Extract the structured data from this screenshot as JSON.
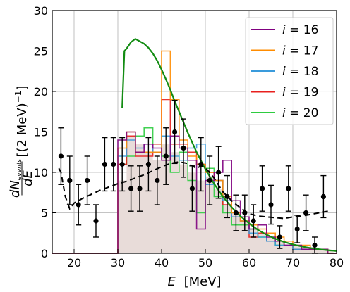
{
  "chart_data": {
    "type": "line",
    "xlabel_var": "E",
    "xlabel_unit": "[MeV]",
    "ylabel_num": "dN",
    "ylabel_num_sub": "events",
    "ylabel_den": "dE",
    "ylabel_unit": "[(2 MeV)",
    "ylabel_exp": "−1",
    "ylabel_close": "]",
    "xlim": [
      15,
      80
    ],
    "ylim": [
      0,
      30
    ],
    "xticks": [
      20,
      30,
      40,
      50,
      60,
      70,
      80
    ],
    "yticks": [
      0,
      5,
      10,
      15,
      20,
      25,
      30
    ],
    "grid": true,
    "legend_position": "top-right",
    "shaded_background_hist": {
      "color": "#e8dcd9",
      "edges": [
        30,
        32,
        34,
        36,
        38,
        40,
        42,
        44,
        46,
        48,
        50,
        52,
        54,
        56,
        58,
        60,
        62,
        64,
        66,
        68,
        70,
        72,
        74,
        76,
        78
      ],
      "values": [
        9,
        14.5,
        13.5,
        12.5,
        11.5,
        13.5,
        12.5,
        11,
        10,
        9,
        9.5,
        8,
        6,
        5,
        4,
        3,
        2.5,
        2,
        1.5,
        1,
        1,
        0.8,
        0.6,
        0.4
      ]
    },
    "histograms": [
      {
        "name_var": "i",
        "name_eq": " = ",
        "name_val": "16",
        "color": "#800080",
        "edges": [
          30,
          32,
          34,
          36,
          38,
          40,
          42,
          44,
          46,
          48,
          50,
          52,
          54,
          56,
          58,
          60,
          62,
          64,
          66,
          68,
          70,
          72,
          74,
          76,
          78,
          80
        ],
        "values": [
          14,
          15,
          12.5,
          13.5,
          13,
          11.5,
          14.5,
          13,
          11.5,
          3,
          9,
          10,
          11.5,
          6.5,
          4.5,
          3,
          3.5,
          2,
          1.5,
          1,
          1,
          0.5,
          0.5,
          0.5,
          0
        ]
      },
      {
        "name_var": "i",
        "name_eq": " = ",
        "name_val": "17",
        "color": "#ff8c00",
        "edges": [
          30,
          32,
          34,
          36,
          38,
          40,
          42,
          44,
          46,
          48,
          50,
          52,
          54,
          56,
          58,
          60,
          62,
          64,
          66,
          68,
          70,
          72,
          74,
          76,
          78,
          80
        ],
        "values": [
          13,
          15,
          12.5,
          12.5,
          12.5,
          25,
          19,
          14,
          12,
          11,
          10,
          9,
          7,
          5,
          4,
          3.5,
          3,
          2.5,
          2,
          1.5,
          1,
          1,
          0.5,
          0.5,
          0
        ]
      },
      {
        "name_var": "i",
        "name_eq": " = ",
        "name_val": "18",
        "color": "#3a9bdc",
        "edges": [
          30,
          32,
          34,
          36,
          38,
          40,
          42,
          44,
          46,
          48,
          50,
          52,
          54,
          56,
          58,
          60,
          62,
          64,
          66,
          68,
          70,
          72,
          74,
          76,
          78,
          80
        ],
        "values": [
          12,
          14,
          13,
          13.5,
          12.5,
          14.5,
          12,
          11.5,
          13,
          13.5,
          8.5,
          9,
          6.5,
          4.5,
          4,
          2.5,
          2,
          1.5,
          1,
          1,
          0.5,
          0.5,
          0.5,
          0.5,
          0
        ]
      },
      {
        "name_var": "i",
        "name_eq": " = ",
        "name_val": "19",
        "color": "#e8201e",
        "edges": [
          30,
          32,
          34,
          36,
          38,
          40,
          42,
          44,
          46,
          48,
          50,
          52,
          54,
          56,
          58,
          60,
          62,
          64,
          66,
          68,
          70,
          72,
          74,
          76,
          78,
          80
        ],
        "values": [
          11,
          14.5,
          12,
          12,
          13.5,
          19,
          13.5,
          13.5,
          12.5,
          11,
          10,
          9,
          6,
          4.5,
          4,
          2,
          2.5,
          1.5,
          1.5,
          1,
          0.5,
          0.5,
          0.5,
          0.5,
          0
        ]
      },
      {
        "name_var": "i",
        "name_eq": " = ",
        "name_val": "20",
        "color": "#2ecc40",
        "edges": [
          30,
          32,
          34,
          36,
          38,
          40,
          42,
          44,
          46,
          48,
          50,
          52,
          54,
          56,
          58,
          60,
          62,
          64,
          66,
          68,
          70,
          72,
          74,
          76,
          78,
          80
        ],
        "values": [
          11,
          12,
          14.5,
          15.5,
          13.5,
          12,
          10,
          12.5,
          9,
          5,
          10.5,
          7,
          5,
          3.5,
          3.5,
          3,
          2,
          1.5,
          1,
          1,
          0.5,
          0.5,
          0.5,
          0.5,
          0
        ]
      }
    ],
    "green_curve": {
      "color": "#138c13",
      "x": [
        31,
        31.5,
        32,
        33,
        34,
        35,
        36,
        37,
        38,
        39,
        40,
        41,
        42,
        43,
        44,
        45,
        46,
        47,
        48,
        50,
        52,
        54,
        56,
        58,
        60,
        62,
        64,
        66,
        68,
        70,
        72,
        74,
        76,
        78,
        80
      ],
      "y": [
        18,
        25,
        25.3,
        26.1,
        26.5,
        26.2,
        25.9,
        25.4,
        24.7,
        23.8,
        22.7,
        21.5,
        20.2,
        18.8,
        17.5,
        16.2,
        14.9,
        13.7,
        12.5,
        10.4,
        8.6,
        7.0,
        5.7,
        4.6,
        3.7,
        2.9,
        2.3,
        1.8,
        1.4,
        1.1,
        0.85,
        0.65,
        0.5,
        0.38,
        0.28
      ]
    },
    "dashed_curve": {
      "color": "#000000",
      "x": [
        16.5,
        17,
        18,
        19,
        20,
        22,
        24,
        26,
        28,
        30,
        32,
        34,
        36,
        38,
        40,
        42,
        44,
        46,
        48,
        49,
        50,
        52,
        54,
        56,
        58,
        60,
        62,
        64,
        66,
        68,
        70,
        72,
        74,
        76,
        78
      ],
      "y": [
        10.5,
        10,
        7,
        5.5,
        6.2,
        6.8,
        7.3,
        7.8,
        8.2,
        8.6,
        8.9,
        9.3,
        9.7,
        10.2,
        10.7,
        11.1,
        11.3,
        11.1,
        10.5,
        10.8,
        10.6,
        9.3,
        7.6,
        6.5,
        5.6,
        4.9,
        4.6,
        4.5,
        4.4,
        4.3,
        4.5,
        4.6,
        4.8,
        5.0,
        5.2
      ]
    },
    "data_points": {
      "color": "#000000",
      "x": [
        17,
        19,
        21,
        23,
        25,
        27,
        29,
        31,
        33,
        35,
        37,
        39,
        41,
        43,
        45,
        47,
        49,
        51,
        53,
        55,
        57,
        59,
        61,
        63,
        65,
        67,
        69,
        71,
        73,
        75,
        77
      ],
      "y": [
        12,
        9,
        6,
        9,
        4,
        11,
        11,
        11,
        8,
        8,
        11,
        9,
        12,
        15,
        13,
        8,
        11,
        9,
        10,
        7,
        5,
        5,
        4,
        8,
        6,
        2,
        8,
        3,
        5,
        1,
        7
      ],
      "err": [
        3.5,
        3,
        2.5,
        3,
        2,
        3.3,
        3.3,
        3.3,
        2.8,
        2.8,
        3.3,
        3,
        3.5,
        3.9,
        3.6,
        2.8,
        3.3,
        3,
        3.2,
        2.6,
        2.2,
        2.2,
        2,
        2.8,
        2.4,
        1.4,
        2.8,
        1.7,
        2.2,
        1,
        2.6
      ]
    }
  }
}
